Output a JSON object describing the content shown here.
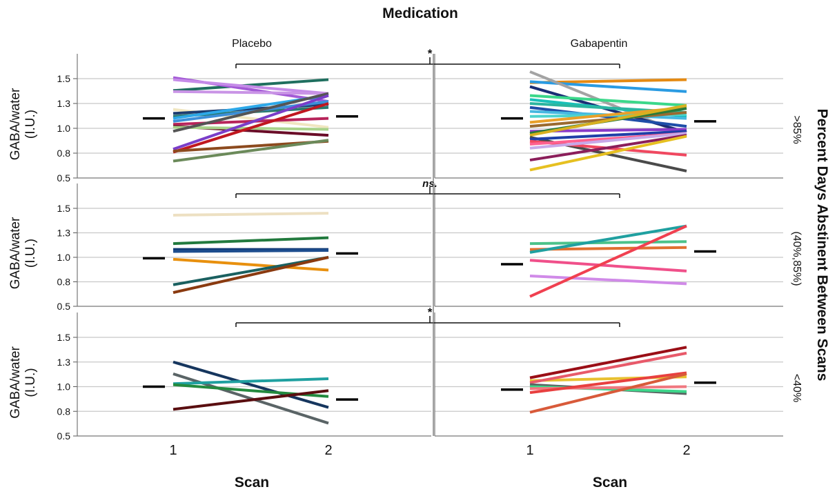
{
  "chart_data": {
    "type": "line",
    "title": "Medication",
    "xlabel": "Scan",
    "ylabel": "GABA/water\n(I.U.)",
    "row_title": "Percent Days Abstinent Between Scans",
    "columns": [
      "Placebo",
      "Gabapentin"
    ],
    "rows": [
      ">85%",
      "(40%,85%)",
      "<40%"
    ],
    "x_categories": [
      "1",
      "2"
    ],
    "yticks": [
      "0.5",
      "0.8",
      "1.0",
      "1.3",
      "1.5"
    ],
    "ylim": [
      0.5,
      1.7
    ],
    "grid": true,
    "significance": [
      "*",
      "ns.",
      "*"
    ],
    "panels": [
      {
        "row": ">85%",
        "column": "Placebo",
        "mean_scan1": 1.1,
        "mean_scan2": 1.12,
        "series": [
          {
            "values": [
              1.38,
              1.49
            ],
            "color": "#1f6f5f"
          },
          {
            "values": [
              1.51,
              1.27
            ],
            "color": "#a35ad6"
          },
          {
            "values": [
              1.49,
              1.35
            ],
            "color": "#c58be8"
          },
          {
            "values": [
              1.37,
              1.35
            ],
            "color": "#c994e6"
          },
          {
            "values": [
              1.19,
              1.01
            ],
            "color": "#f0e6c0"
          },
          {
            "values": [
              1.15,
              1.24
            ],
            "color": "#1d3d70"
          },
          {
            "values": [
              1.12,
              1.21
            ],
            "color": "#2a7a6e"
          },
          {
            "values": [
              1.1,
              1.33
            ],
            "color": "#2da8e8"
          },
          {
            "values": [
              1.07,
              1.27
            ],
            "color": "#3d8fd8"
          },
          {
            "values": [
              1.04,
              1.1
            ],
            "color": "#b7245a"
          },
          {
            "values": [
              1.02,
              0.93
            ],
            "color": "#6a0d28"
          },
          {
            "values": [
              1.01,
              0.99
            ],
            "color": "#a8d28a"
          },
          {
            "values": [
              0.97,
              1.35
            ],
            "color": "#555555"
          },
          {
            "values": [
              0.79,
              1.33
            ],
            "color": "#7a3ec9"
          },
          {
            "values": [
              0.76,
              1.25
            ],
            "color": "#c0171f"
          },
          {
            "values": [
              0.77,
              0.87
            ],
            "color": "#8c4a1e"
          },
          {
            "values": [
              0.67,
              0.88
            ],
            "color": "#6b8a5a"
          }
        ]
      },
      {
        "row": ">85%",
        "column": "Gabapentin",
        "mean_scan1": 1.1,
        "mean_scan2": 1.07,
        "series": [
          {
            "values": [
              1.46,
              1.49
            ],
            "color": "#e58a12"
          },
          {
            "values": [
              1.47,
              1.37
            ],
            "color": "#2a9be2"
          },
          {
            "values": [
              1.57,
              0.93
            ],
            "color": "#a3a3a3"
          },
          {
            "values": [
              1.42,
              0.96
            ],
            "color": "#1a2e75"
          },
          {
            "values": [
              1.33,
              1.23
            ],
            "color": "#3bd88a"
          },
          {
            "values": [
              1.29,
              1.12
            ],
            "color": "#18c0b8"
          },
          {
            "values": [
              1.25,
              1.16
            ],
            "color": "#2bb5a0"
          },
          {
            "values": [
              1.21,
              1.02
            ],
            "color": "#1e4ea8"
          },
          {
            "values": [
              1.17,
              1.1
            ],
            "color": "#46b8e0"
          },
          {
            "values": [
              1.12,
              1.14
            ],
            "color": "#4bd4ce"
          },
          {
            "values": [
              1.06,
              1.21
            ],
            "color": "#e8a02a"
          },
          {
            "values": [
              1.02,
              1.16
            ],
            "color": "#9a6a30"
          },
          {
            "values": [
              0.97,
              0.99
            ],
            "color": "#8a3ac8"
          },
          {
            "values": [
              0.95,
              1.2
            ],
            "color": "#2a7a3a"
          },
          {
            "values": [
              0.93,
              1.23
            ],
            "color": "#d8b020"
          },
          {
            "values": [
              0.91,
              0.57
            ],
            "color": "#4a4a4a"
          },
          {
            "values": [
              0.89,
              0.97
            ],
            "color": "#1f3fa8"
          },
          {
            "values": [
              0.87,
              0.73
            ],
            "color": "#f04860"
          },
          {
            "values": [
              0.84,
              0.95
            ],
            "color": "#ff6090"
          },
          {
            "values": [
              0.8,
              0.95
            ],
            "color": "#c8a8e8"
          },
          {
            "values": [
              0.68,
              0.93
            ],
            "color": "#8b1e5a"
          },
          {
            "values": [
              0.58,
              0.92
            ],
            "color": "#e6c020"
          }
        ]
      },
      {
        "row": "(40%,85%)",
        "column": "Placebo",
        "mean_scan1": 0.99,
        "mean_scan2": 1.04,
        "series": [
          {
            "values": [
              1.43,
              1.45
            ],
            "color": "#ede0c2"
          },
          {
            "values": [
              1.14,
              1.2
            ],
            "color": "#227a3e"
          },
          {
            "values": [
              1.08,
              1.08
            ],
            "color": "#123a75"
          },
          {
            "values": [
              1.06,
              1.07
            ],
            "color": "#1d4d8e"
          },
          {
            "values": [
              0.98,
              0.87
            ],
            "color": "#e8900e"
          },
          {
            "values": [
              0.72,
              1.0
            ],
            "color": "#1a6060"
          },
          {
            "values": [
              0.64,
              1.0
            ],
            "color": "#8a3a10"
          }
        ]
      },
      {
        "row": "(40%,85%)",
        "column": "Gabapentin",
        "mean_scan1": 0.93,
        "mean_scan2": 1.06,
        "series": [
          {
            "values": [
              1.14,
              1.16
            ],
            "color": "#4cc28a"
          },
          {
            "values": [
              1.08,
              1.1
            ],
            "color": "#e07030"
          },
          {
            "values": [
              1.05,
              1.32
            ],
            "color": "#20a0a0"
          },
          {
            "values": [
              0.97,
              0.86
            ],
            "color": "#f0508a"
          },
          {
            "values": [
              0.81,
              0.73
            ],
            "color": "#d08ae8"
          },
          {
            "values": [
              0.6,
              1.32
            ],
            "color": "#f04050"
          }
        ]
      },
      {
        "row": "<40%",
        "column": "Placebo",
        "mean_scan1": 1.0,
        "mean_scan2": 0.87,
        "series": [
          {
            "values": [
              1.25,
              0.79
            ],
            "color": "#16365e"
          },
          {
            "values": [
              1.13,
              0.63
            ],
            "color": "#5a6466"
          },
          {
            "values": [
              1.03,
              1.08
            ],
            "color": "#1fa0a0"
          },
          {
            "values": [
              1.02,
              0.9
            ],
            "color": "#238a3e"
          },
          {
            "values": [
              0.77,
              0.96
            ],
            "color": "#5a0e10"
          }
        ]
      },
      {
        "row": "<40%",
        "column": "Gabapentin",
        "mean_scan1": 0.97,
        "mean_scan2": 1.04,
        "series": [
          {
            "values": [
              1.09,
              1.4
            ],
            "color": "#9a0e16"
          },
          {
            "values": [
              1.06,
              1.1
            ],
            "color": "#e8c030"
          },
          {
            "values": [
              1.04,
              1.34
            ],
            "color": "#e85a6a"
          },
          {
            "values": [
              1.02,
              0.93
            ],
            "color": "#5a6262"
          },
          {
            "values": [
              1.0,
              0.95
            ],
            "color": "#3cd68a"
          },
          {
            "values": [
              0.98,
              1.0
            ],
            "color": "#f07880"
          },
          {
            "values": [
              0.94,
              1.14
            ],
            "color": "#e84040"
          },
          {
            "values": [
              0.74,
              1.13
            ],
            "color": "#d85a3a"
          }
        ]
      }
    ]
  }
}
